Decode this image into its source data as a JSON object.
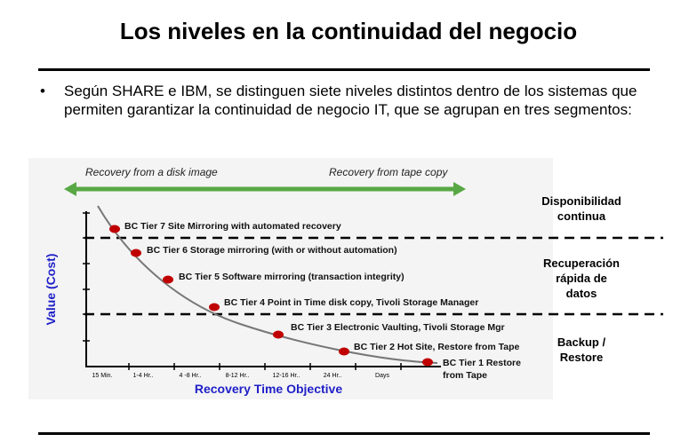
{
  "title": "Los niveles en la continuidad del negocio",
  "bullet": {
    "marker": "•",
    "text": "Según SHARE e IBM, se distinguen siete niveles distintos dentro de los sistemas que permiten garantizar la continuidad de negocio IT, que se agrupan en tres segmentos:"
  },
  "diagram": {
    "arrow_left_label": "Recovery from a disk image",
    "arrow_right_label": "Recovery from tape copy",
    "y_axis_label": "Value  (Cost)",
    "x_axis_label": "Recovery Time Objective",
    "x_ticks": [
      "15 Min.",
      "1-4 Hr..",
      "4 -8 Hr..",
      "8-12 Hr..",
      "12-16 Hr..",
      "24 Hr..",
      "Days"
    ],
    "tiers": [
      {
        "label": "BC Tier 7 Site Mirroring with automated recovery"
      },
      {
        "label": "BC Tier 6 Storage mirroring (with or without automation)"
      },
      {
        "label": "BC Tier 5 Software mirroring (transaction integrity)"
      },
      {
        "label": "BC Tier 4 Point in Time disk copy, Tivoli Storage Manager"
      },
      {
        "label": "BC Tier 3  Electronic Vaulting, Tivoli Storage Mgr"
      },
      {
        "label": "BC Tier 2 Hot Site, Restore from Tape"
      },
      {
        "label": "BC Tier 1 Restore",
        "label2": "from Tape"
      }
    ],
    "segments": [
      {
        "line1": "Disponibilidad",
        "line2": "continua",
        "line3": ""
      },
      {
        "line1": "Recuperación",
        "line2": "rápida de",
        "line3": "datos"
      },
      {
        "line1": "Backup /",
        "line2": "Restore",
        "line3": ""
      }
    ],
    "colors": {
      "arrow": "#58a845",
      "dot": "#c00000",
      "axis_label": "#1f1fc8",
      "curve": "#777777"
    }
  }
}
